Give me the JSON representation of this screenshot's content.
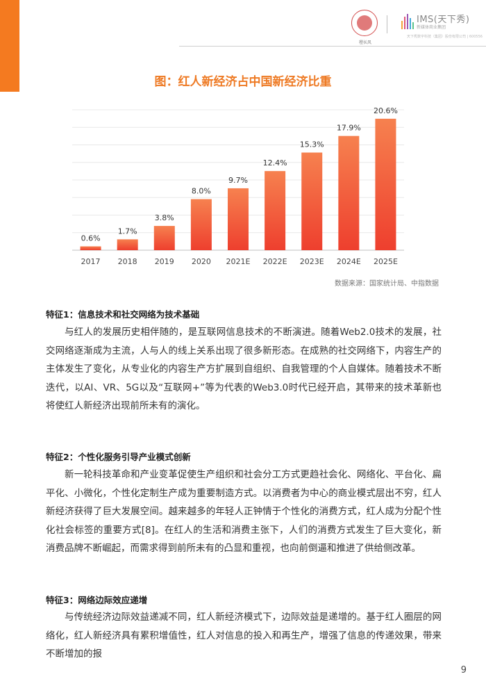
{
  "header": {
    "seal_text": "橙长风",
    "ims_brand": "IMS(天下秀)",
    "ims_subtitle": "新媒体商业集团",
    "ims_tagline": "天下秀数字科技（集团）股份有限公司 | 600556"
  },
  "chart_data": {
    "type": "bar",
    "title": "图：红人新经济占中国新经济比重",
    "categories": [
      "2017",
      "2018",
      "2019",
      "2020",
      "2021E",
      "2022E",
      "2023E",
      "2024E",
      "2025E"
    ],
    "values": [
      0.6,
      1.7,
      3.8,
      8.0,
      9.7,
      12.4,
      15.3,
      17.9,
      20.6
    ],
    "labels": [
      "0.6%",
      "1.7%",
      "3.8%",
      "8.0%",
      "9.7%",
      "12.4%",
      "15.3%",
      "17.9%",
      "20.6%"
    ],
    "unit": "%",
    "ylim": [
      0,
      22
    ],
    "grid": true,
    "colors": {
      "bar_top": "#f6814f",
      "bar_bottom": "#ee3f2e",
      "grid": "#e8e8e8",
      "axis": "#bfbfbf"
    },
    "source": "数据来源：国家统计局、中指数据"
  },
  "sections": [
    {
      "heading": "特征1：信息技术和社交网络为技术基础",
      "paragraph": "与红人的发展历史相伴随的，是互联网信息技术的不断演进。随着Web2.0技术的发展，社交网络逐渐成为主流，人与人的线上关系出现了很多新形态。在成熟的社交网络下，内容生产的主体发生了变化，从专业化的内容生产方扩展到自组织、自我管理的个人自媒体。随着技术不断迭代，以AI、VR、5G以及“互联网+”等为代表的Web3.0时代已经开启，其带来的技术革新也将使红人新经济出现前所未有的演化。"
    },
    {
      "heading": "特征2：个性化服务引导产业模式创新",
      "paragraph": "新一轮科技革命和产业变革促使生产组织和社会分工方式更趋社会化、网络化、平台化、扁平化、小微化，个性化定制生产成为重要制造方式。以消费者为中心的商业模式层出不穷，红人新经济获得了巨大发展空间。越来越多的年轻人正钟情于个性化的消费方式，红人成为分配个性化社会标签的重要方式[8]。在红人的生活和消费主张下，人们的消费方式发生了巨大变化，新消费品牌不断崛起，而需求得到前所未有的凸显和重视，也向前倒逼和推进了供给侧改革。"
    },
    {
      "heading": "特征3：网络边际效应递增",
      "paragraph": "与传统经济边际效益递减不同，红人新经济模式下，边际效益是递增的。基于红人圈层的网络化，红人新经济具有累积增值性，红人对信息的投入和再生产，增强了信息的传递效果，带来不断增加的报"
    }
  ],
  "page_number": "9"
}
